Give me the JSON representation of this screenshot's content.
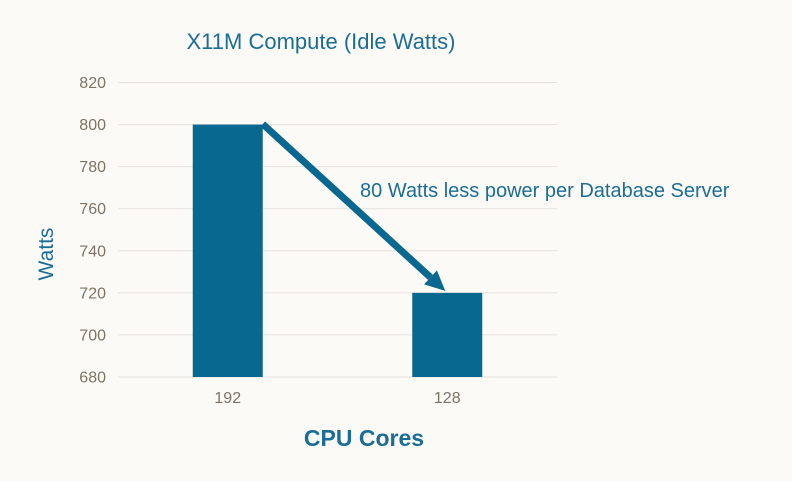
{
  "chart_data": {
    "type": "bar",
    "title": "X11M Compute (Idle Watts)",
    "xlabel": "CPU Cores",
    "ylabel": "Watts",
    "categories": [
      "192",
      "128"
    ],
    "values": [
      800,
      720
    ],
    "ylim": [
      680,
      820
    ],
    "yticks": [
      680,
      700,
      720,
      740,
      760,
      780,
      800,
      820
    ],
    "grid": "horizontal",
    "legend": "none",
    "annotation": {
      "text": "80 Watts less power per Database Server",
      "arrow_from": {
        "category": "192",
        "value": 800
      },
      "arrow_to": {
        "category": "128",
        "value": 720
      }
    },
    "colors": {
      "bar": "#09688f",
      "arrow": "#09688f",
      "accent_text": "#1b6d95",
      "tick_label": "#7e7265",
      "gridline": "#e5e2dc",
      "background": "#fcfaf7"
    }
  }
}
